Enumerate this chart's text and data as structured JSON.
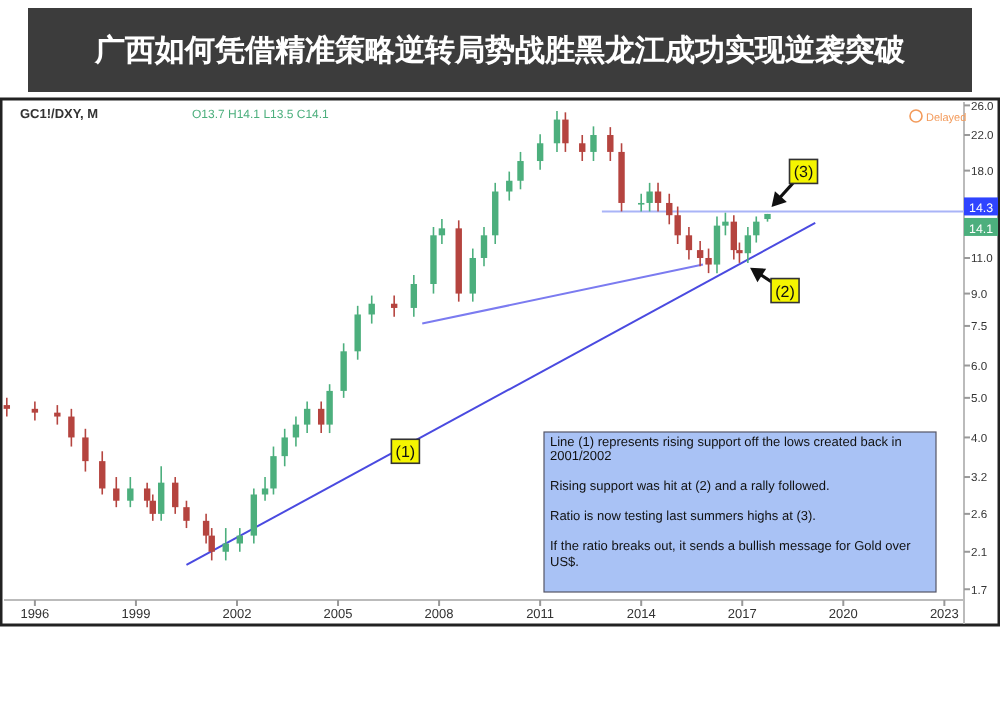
{
  "chart_data": {
    "type": "candlestick",
    "title": "GC1!/DXY, M",
    "subtitle": "O13.7 H14.1 L13.5 C14.1",
    "x": [
      "1995-03",
      "1996-01",
      "1996-09",
      "1997-02",
      "1997-07",
      "1998-01",
      "1998-06",
      "1998-11",
      "1999-05",
      "1999-07",
      "1999-10",
      "2000-03",
      "2000-07",
      "2001-02",
      "2001-04",
      "2001-09",
      "2002-02",
      "2002-07",
      "2002-11",
      "2003-02",
      "2003-06",
      "2003-10",
      "2004-02",
      "2004-07",
      "2004-10",
      "2005-03",
      "2005-08",
      "2006-01",
      "2006-09",
      "2007-04",
      "2007-11",
      "2008-02",
      "2008-08",
      "2009-01",
      "2009-05",
      "2009-09",
      "2010-02",
      "2010-06",
      "2011-01",
      "2011-07",
      "2011-10",
      "2012-04",
      "2012-08",
      "2013-02",
      "2013-06",
      "2014-01",
      "2014-04",
      "2014-07",
      "2014-11",
      "2015-02",
      "2015-06",
      "2015-10",
      "2016-01",
      "2016-04",
      "2016-07",
      "2016-10",
      "2016-12",
      "2017-03",
      "2017-06",
      "2017-10"
    ],
    "ohlc": [
      [
        4.8,
        5.0,
        4.5,
        4.7
      ],
      [
        4.7,
        4.9,
        4.4,
        4.6
      ],
      [
        4.6,
        4.8,
        4.3,
        4.5
      ],
      [
        4.5,
        4.7,
        3.8,
        4.0
      ],
      [
        4.0,
        4.2,
        3.3,
        3.5
      ],
      [
        3.5,
        3.7,
        2.9,
        3.0
      ],
      [
        3.0,
        3.2,
        2.7,
        2.8
      ],
      [
        2.8,
        3.2,
        2.7,
        3.0
      ],
      [
        3.0,
        3.1,
        2.7,
        2.8
      ],
      [
        2.8,
        2.9,
        2.5,
        2.6
      ],
      [
        2.6,
        3.4,
        2.5,
        3.1
      ],
      [
        3.1,
        3.2,
        2.6,
        2.7
      ],
      [
        2.7,
        2.8,
        2.4,
        2.5
      ],
      [
        2.5,
        2.6,
        2.2,
        2.3
      ],
      [
        2.3,
        2.4,
        2.0,
        2.1
      ],
      [
        2.1,
        2.4,
        2.0,
        2.2
      ],
      [
        2.2,
        2.4,
        2.1,
        2.3
      ],
      [
        2.3,
        3.0,
        2.2,
        2.9
      ],
      [
        2.9,
        3.2,
        2.8,
        3.0
      ],
      [
        3.0,
        3.8,
        2.9,
        3.6
      ],
      [
        3.6,
        4.2,
        3.4,
        4.0
      ],
      [
        4.0,
        4.5,
        3.8,
        4.3
      ],
      [
        4.3,
        4.9,
        4.1,
        4.7
      ],
      [
        4.7,
        4.9,
        4.1,
        4.3
      ],
      [
        4.3,
        5.4,
        4.1,
        5.2
      ],
      [
        5.2,
        6.8,
        5.0,
        6.5
      ],
      [
        6.5,
        8.4,
        6.2,
        8.0
      ],
      [
        8.0,
        8.9,
        7.6,
        8.5
      ],
      [
        8.5,
        8.9,
        7.9,
        8.3
      ],
      [
        8.3,
        10.0,
        7.9,
        9.5
      ],
      [
        9.5,
        13.1,
        9.0,
        12.5
      ],
      [
        12.5,
        13.7,
        11.9,
        13.0
      ],
      [
        13.0,
        13.6,
        8.6,
        9.0
      ],
      [
        9.0,
        11.6,
        8.6,
        11.0
      ],
      [
        11.0,
        13.1,
        10.5,
        12.5
      ],
      [
        12.5,
        16.8,
        11.9,
        16.0
      ],
      [
        16.0,
        17.9,
        15.2,
        17.0
      ],
      [
        17.0,
        20.0,
        16.2,
        19.0
      ],
      [
        19.0,
        22.1,
        18.1,
        21.0
      ],
      [
        21.0,
        25.2,
        20.0,
        24.0
      ],
      [
        24.0,
        25.0,
        20.0,
        21.0
      ],
      [
        21.0,
        22.0,
        19.0,
        20.0
      ],
      [
        20.0,
        23.1,
        19.0,
        22.0
      ],
      [
        22.0,
        23.0,
        19.0,
        20.0
      ],
      [
        20.0,
        21.0,
        14.3,
        15.0
      ],
      [
        15.0,
        15.8,
        14.3,
        15.0
      ],
      [
        15.0,
        16.8,
        14.3,
        16.0
      ],
      [
        16.0,
        16.8,
        14.3,
        15.0
      ],
      [
        15.0,
        15.8,
        13.3,
        14.0
      ],
      [
        14.0,
        14.7,
        11.9,
        12.5
      ],
      [
        12.5,
        13.1,
        10.9,
        11.5
      ],
      [
        11.5,
        12.1,
        10.5,
        11.0
      ],
      [
        11.0,
        11.6,
        10.1,
        10.6
      ],
      [
        10.6,
        13.9,
        10.1,
        13.2
      ],
      [
        13.2,
        14.2,
        12.5,
        13.5
      ],
      [
        13.5,
        14.0,
        10.9,
        11.5
      ],
      [
        11.5,
        12.0,
        10.7,
        11.3
      ],
      [
        11.3,
        13.1,
        10.7,
        12.5
      ],
      [
        12.5,
        13.9,
        12.0,
        13.5
      ],
      [
        13.7,
        14.1,
        13.5,
        14.1
      ]
    ],
    "colors": [
      "#b5443f",
      "#b5443f",
      "#b5443f",
      "#b5443f",
      "#b5443f",
      "#b5443f",
      "#b5443f",
      "#4caf7d",
      "#b5443f",
      "#b5443f",
      "#4caf7d",
      "#b5443f",
      "#b5443f",
      "#b5443f",
      "#b5443f",
      "#4caf7d",
      "#4caf7d",
      "#4caf7d",
      "#4caf7d",
      "#4caf7d",
      "#4caf7d",
      "#4caf7d",
      "#4caf7d",
      "#b5443f",
      "#4caf7d",
      "#4caf7d",
      "#4caf7d",
      "#4caf7d",
      "#b5443f",
      "#4caf7d",
      "#4caf7d",
      "#4caf7d",
      "#b5443f",
      "#4caf7d",
      "#4caf7d",
      "#4caf7d",
      "#4caf7d",
      "#4caf7d",
      "#4caf7d",
      "#4caf7d",
      "#b5443f",
      "#b5443f",
      "#4caf7d",
      "#b5443f",
      "#b5443f",
      "#4caf7d",
      "#4caf7d",
      "#b5443f",
      "#b5443f",
      "#b5443f",
      "#b5443f",
      "#b5443f",
      "#b5443f",
      "#4caf7d",
      "#4caf7d",
      "#b5443f",
      "#b5443f",
      "#4caf7d",
      "#4caf7d",
      "#4caf7d"
    ],
    "series": [
      {
        "type": "line",
        "color": "#4a4ae0",
        "x": [
          "2000-07",
          "2019-03"
        ],
        "values": [
          1.95,
          13.4
        ]
      },
      {
        "type": "line",
        "color": "#7b7bf0",
        "x": [
          "2007-07",
          "2015-11"
        ],
        "values": [
          7.6,
          10.6
        ]
      },
      {
        "type": "line",
        "color": "#a9b4f7",
        "x": [
          "2012-11",
          "2023-08"
        ],
        "values": [
          14.3,
          14.3
        ]
      }
    ],
    "xlim": [
      "1995-02",
      "2023-08"
    ],
    "ylim": [
      1.6,
      26.5
    ],
    "log": "y",
    "xticks": [
      {
        "value": "1996",
        "label": "1996"
      },
      {
        "value": "1999",
        "label": "1999"
      },
      {
        "value": "2002",
        "label": "2002"
      },
      {
        "value": "2005",
        "label": "2005"
      },
      {
        "value": "2008",
        "label": "2008"
      },
      {
        "value": "2011",
        "label": "2011"
      },
      {
        "value": "2014",
        "label": "2014"
      },
      {
        "value": "2017",
        "label": "2017"
      },
      {
        "value": "2020",
        "label": "2020"
      },
      {
        "value": "2023",
        "label": "2023"
      }
    ],
    "yticks": [
      {
        "value": 1.7,
        "label": "1.7"
      },
      {
        "value": 2.1,
        "label": "2.1"
      },
      {
        "value": 2.6,
        "label": "2.6"
      },
      {
        "value": 3.2,
        "label": "3.2"
      },
      {
        "value": 4,
        "label": "4.0"
      },
      {
        "value": 5,
        "label": "5.0"
      },
      {
        "value": 6,
        "label": "6.0"
      },
      {
        "value": 7.5,
        "label": "7.5"
      },
      {
        "value": 9,
        "label": "9.0"
      },
      {
        "value": 11,
        "label": "11.0"
      },
      {
        "value": 18,
        "label": "18.0"
      },
      {
        "value": 22,
        "label": "22.0"
      },
      {
        "value": 26,
        "label": "26.0"
      }
    ],
    "annotations": [
      {
        "text": "(1)",
        "x": "2007-01",
        "y": 3.7
      },
      {
        "text": "(2)",
        "x": "2017-02",
        "y": 10.6
      },
      {
        "text": "(3)",
        "x": "2017-10",
        "y": 14.3
      },
      {
        "text": "14.3",
        "x": "2023-08",
        "y": 14.3
      },
      {
        "text": "14.1",
        "x": "2023-08",
        "y": 14.1
      },
      "Delayed",
      "Line (1) represents rising support off the lows created back in 2001/2002\n\nRising support was hit at (2) and a rally followed.\n\nRatio is now testing last summers highs at (3).\n\nIf the ratio breaks out, it sends a bullish message for Gold over US$.",
      "广西如何凭借精准策略逆转局势战胜黑龙江成功实现逆袭突破"
    ]
  }
}
